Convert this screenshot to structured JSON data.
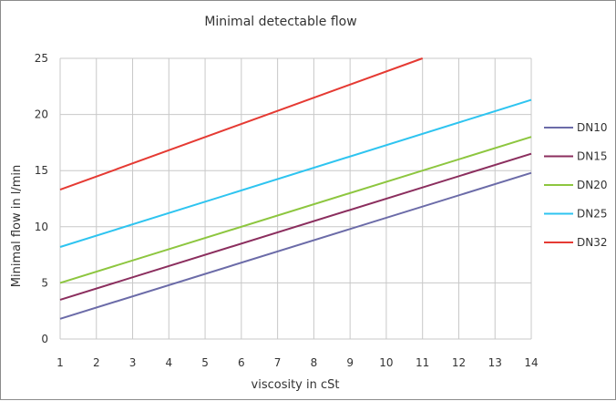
{
  "chart_data": {
    "type": "line",
    "title": "Minimal detectable flow",
    "xlabel": "viscosity in cSt",
    "ylabel": "Minimal flow in l/min",
    "xlim": [
      1,
      14
    ],
    "ylim": [
      0,
      25
    ],
    "x_ticks": [
      "1",
      "2",
      "3",
      "4",
      "5",
      "6",
      "7",
      "8",
      "9",
      "10",
      "11",
      "12",
      "13",
      "14"
    ],
    "y_ticks": [
      "0",
      "5",
      "10",
      "15",
      "20",
      "25"
    ],
    "grid": true,
    "legend_position": "right",
    "series": [
      {
        "name": "DN10",
        "color": "#6b6ba8",
        "points": [
          [
            1,
            1.8
          ],
          [
            14,
            14.8
          ]
        ]
      },
      {
        "name": "DN15",
        "color": "#8b2e5e",
        "points": [
          [
            1,
            3.5
          ],
          [
            14,
            16.5
          ]
        ]
      },
      {
        "name": "DN20",
        "color": "#8dc63f",
        "points": [
          [
            1,
            5.0
          ],
          [
            14,
            18.0
          ]
        ]
      },
      {
        "name": "DN25",
        "color": "#2ec4f0",
        "points": [
          [
            1,
            8.2
          ],
          [
            14,
            21.3
          ]
        ]
      },
      {
        "name": "DN32",
        "color": "#e53a33",
        "points": [
          [
            1,
            13.3
          ],
          [
            11,
            25.0
          ]
        ]
      }
    ]
  }
}
